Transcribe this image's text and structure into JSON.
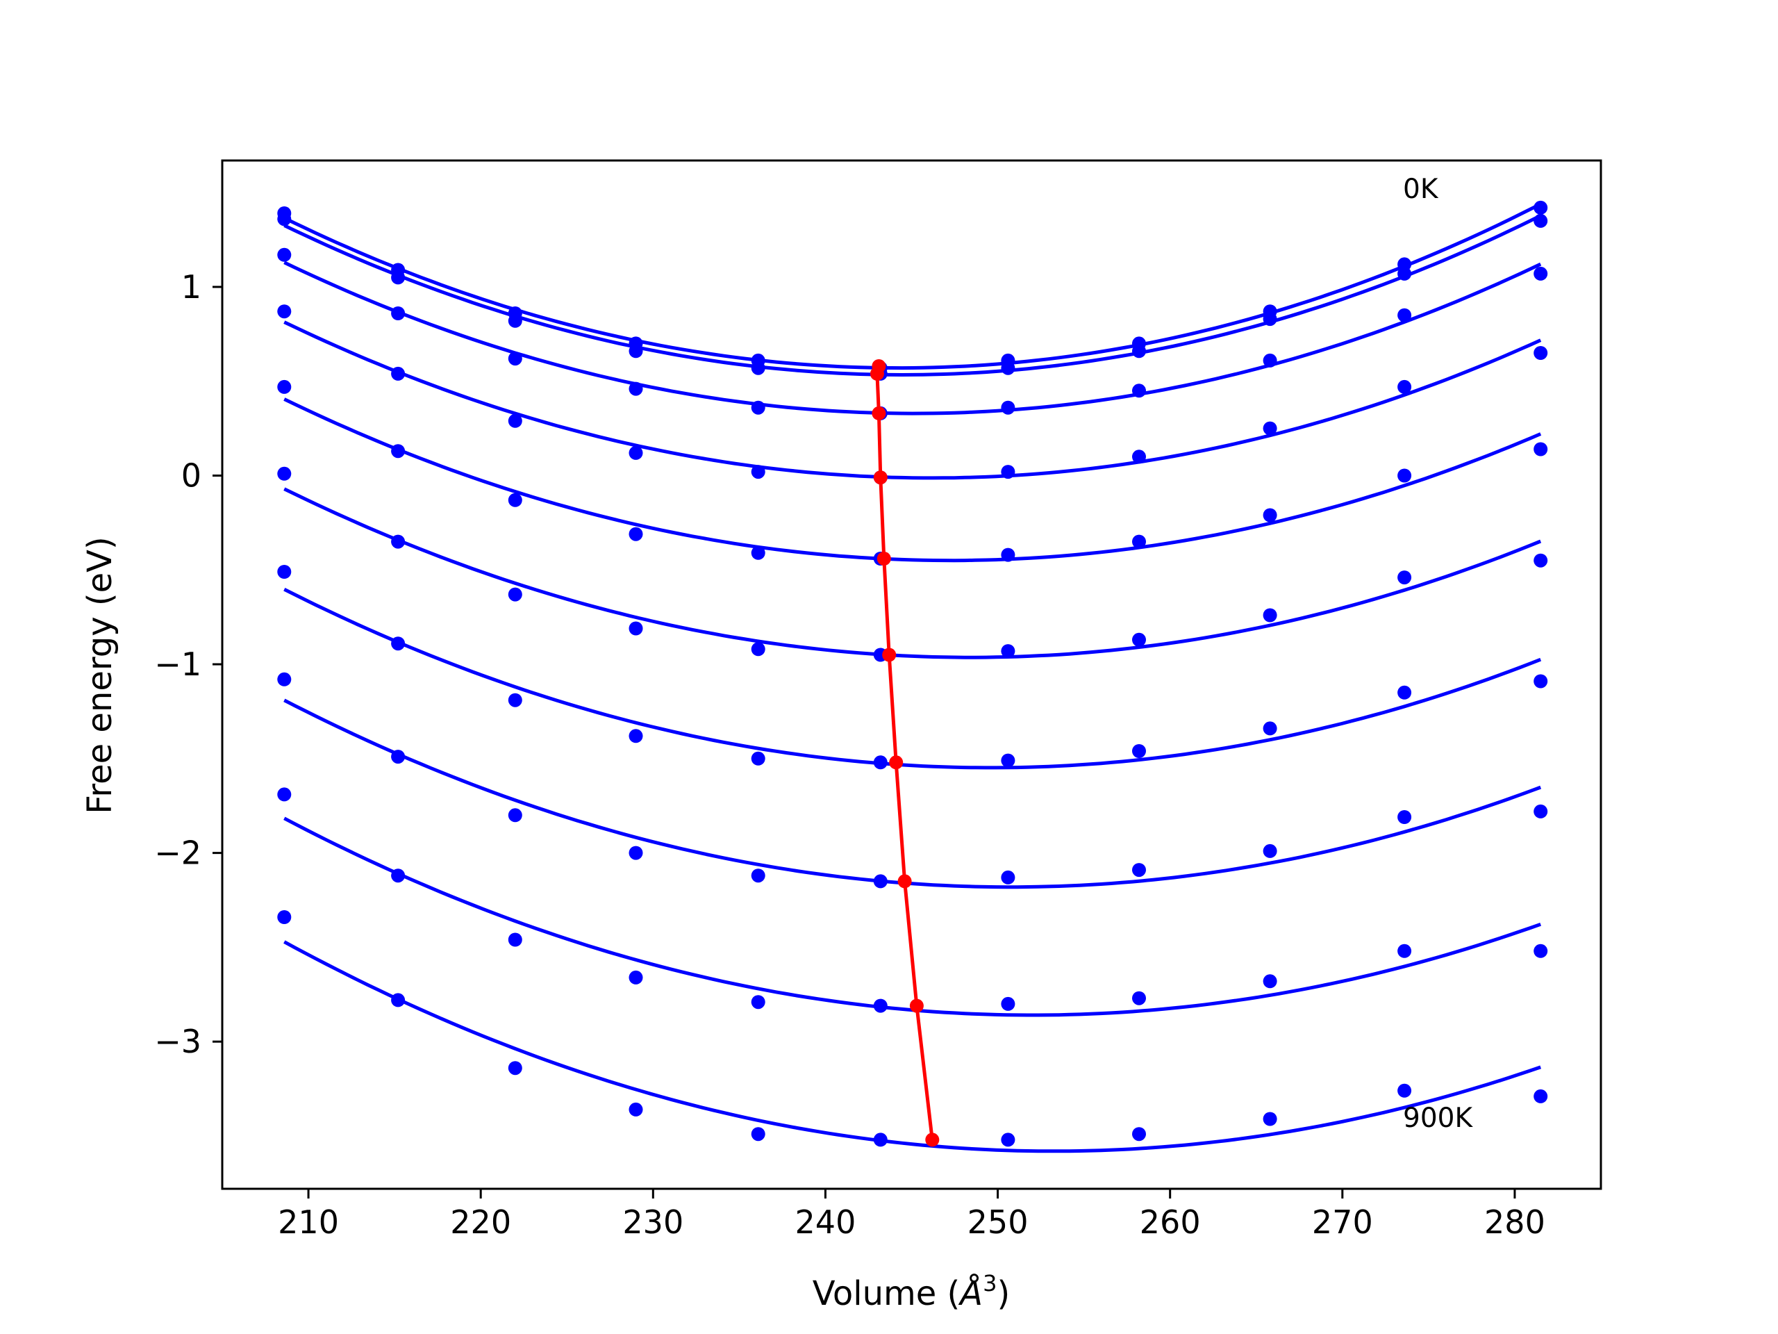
{
  "chart_data": {
    "type": "line",
    "xlabel": "Volume (",
    "xlabel_symbol": "Å",
    "xlabel_exponent": "3",
    "xlabel_close": ")",
    "ylabel": "Free energy (eV)",
    "xlim": [
      205,
      285
    ],
    "ylim": [
      -3.78,
      1.67
    ],
    "xticks": [
      210,
      220,
      230,
      240,
      250,
      260,
      270,
      280
    ],
    "xtick_labels": [
      "210",
      "220",
      "230",
      "240",
      "250",
      "260",
      "270",
      "280"
    ],
    "yticks": [
      -3,
      -2,
      -1,
      0,
      1
    ],
    "ytick_labels": [
      "−3",
      "−2",
      "−1",
      "0",
      "1"
    ],
    "annotations": [
      {
        "text": "0K",
        "x": 273.7,
        "y": 1.5
      },
      {
        "text": "900K",
        "x": 273.7,
        "y": -3.4
      }
    ],
    "grid": false,
    "volumes": [
      208.6,
      215.2,
      222.0,
      229.0,
      236.1,
      243.2,
      250.6,
      258.2,
      265.8,
      273.6,
      281.5
    ],
    "series": [
      {
        "values": [
          1.39,
          1.09,
          0.86,
          0.7,
          0.61,
          0.57,
          0.61,
          0.7,
          0.87,
          1.12,
          1.42
        ]
      },
      {
        "values": [
          1.36,
          1.05,
          0.82,
          0.66,
          0.57,
          0.54,
          0.57,
          0.66,
          0.83,
          1.07,
          1.35
        ]
      },
      {
        "values": [
          1.17,
          0.86,
          0.62,
          0.46,
          0.36,
          0.33,
          0.36,
          0.45,
          0.61,
          0.85,
          1.07
        ]
      },
      {
        "values": [
          0.87,
          0.54,
          0.29,
          0.12,
          0.02,
          -0.01,
          0.02,
          0.1,
          0.25,
          0.47,
          0.65
        ]
      },
      {
        "values": [
          0.47,
          0.13,
          -0.13,
          -0.31,
          -0.41,
          -0.44,
          -0.42,
          -0.35,
          -0.21,
          0.0,
          0.14
        ]
      },
      {
        "values": [
          0.01,
          -0.35,
          -0.63,
          -0.81,
          -0.92,
          -0.95,
          -0.93,
          -0.87,
          -0.74,
          -0.54,
          -0.45
        ]
      },
      {
        "values": [
          -0.51,
          -0.89,
          -1.19,
          -1.38,
          -1.5,
          -1.52,
          -1.51,
          -1.46,
          -1.34,
          -1.15,
          -1.09
        ]
      },
      {
        "values": [
          -1.08,
          -1.49,
          -1.8,
          -2.0,
          -2.12,
          -2.15,
          -2.13,
          -2.09,
          -1.99,
          -1.81,
          -1.78
        ]
      },
      {
        "values": [
          -1.69,
          -2.12,
          -2.46,
          -2.66,
          -2.79,
          -2.81,
          -2.8,
          -2.77,
          -2.68,
          -2.52,
          -2.52
        ]
      },
      {
        "values": [
          -2.34,
          -2.78,
          -3.14,
          -3.36,
          -3.49,
          -3.52,
          -3.52,
          -3.49,
          -3.41,
          -3.26,
          -3.29
        ]
      }
    ],
    "minima": {
      "x": [
        243.1,
        243.0,
        243.1,
        243.2,
        243.4,
        243.7,
        244.1,
        244.6,
        245.3,
        246.2
      ],
      "y": [
        0.58,
        0.54,
        0.33,
        -0.01,
        -0.44,
        -0.95,
        -1.52,
        -2.15,
        -2.81,
        -3.52
      ]
    },
    "colors": {
      "curves": "#0000ff",
      "minima": "#ff0000",
      "axes": "#000000"
    }
  }
}
